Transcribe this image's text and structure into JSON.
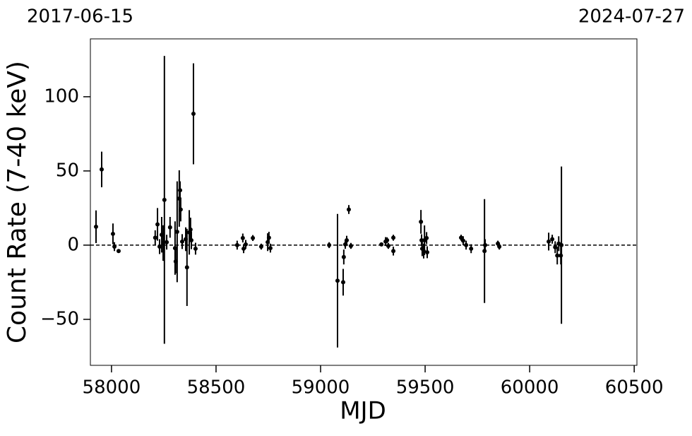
{
  "chart_data": {
    "type": "scatter",
    "top_left_date": "2017-06-15",
    "top_right_date": "2024-07-27",
    "xlabel": "MJD",
    "ylabel": "Count Rate (7-40 keV)",
    "xlim": [
      57899,
      60513
    ],
    "ylim": [
      -81,
      139
    ],
    "xticks": [
      58000,
      58500,
      59000,
      59500,
      60000,
      60500
    ],
    "yticks": [
      {
        "value": -50,
        "label": "−50"
      },
      0,
      50,
      100
    ],
    "hline": 0,
    "series": [
      {
        "color": "#000000",
        "x": [
          57926,
          57953,
          58007,
          58014,
          58034,
          58209,
          58220,
          58230,
          58240,
          58247,
          58253,
          58264,
          58280,
          58304,
          58307,
          58314,
          58324,
          58328,
          58331,
          58338,
          58355,
          58361,
          58372,
          58378,
          58382,
          58392,
          58402,
          58601,
          58628,
          58632,
          58642,
          58676,
          58716,
          58747,
          58753,
          58760,
          59041,
          59081,
          59108,
          59111,
          59118,
          59125,
          59135,
          59145,
          59291,
          59311,
          59318,
          59324,
          59348,
          59348,
          59480,
          59483,
          59486,
          59493,
          59497,
          59507,
          59510,
          59672,
          59682,
          59696,
          59720,
          59784,
          59787,
          59848,
          59855,
          60091,
          60108,
          60122,
          60132,
          60139,
          60149,
          60152
        ],
        "values": [
          12.4,
          51,
          7.6,
          -1,
          -4,
          5,
          14,
          -1,
          7,
          1.4,
          30.5,
          2,
          12,
          -2,
          -11,
          9,
          31.4,
          37,
          24,
          2.4,
          4,
          -15,
          8.6,
          10.5,
          3.3,
          88.5,
          -2.4,
          0,
          4.8,
          -2.4,
          0.5,
          4.8,
          -1,
          2,
          5,
          -2,
          0,
          -24,
          -25,
          -8,
          0.5,
          3.3,
          24,
          -0.5,
          0.5,
          2.4,
          3.3,
          -0.5,
          5,
          -4,
          15.7,
          3.3,
          -2.4,
          -4,
          3.3,
          4.8,
          -4.8,
          5,
          3,
          0,
          -2.4,
          -4,
          0,
          1,
          -1,
          2.4,
          4,
          -1.4,
          -7,
          1,
          -7,
          0
        ],
        "errors": [
          11,
          12,
          7,
          3,
          1,
          5,
          11,
          5,
          12,
          12,
          97,
          5,
          7,
          18,
          8,
          34,
          19,
          6,
          8,
          5,
          8,
          26,
          15,
          8,
          6,
          34,
          4,
          3,
          3,
          3,
          3,
          2,
          2,
          6,
          4,
          3,
          2,
          45,
          9,
          5,
          3,
          3,
          3,
          2,
          1,
          3,
          2,
          2,
          2,
          3,
          8,
          4,
          5,
          5,
          10,
          4,
          4,
          2,
          3,
          3,
          3,
          35,
          4,
          2,
          2,
          6,
          3,
          4,
          6,
          5,
          6,
          53
        ]
      }
    ]
  }
}
